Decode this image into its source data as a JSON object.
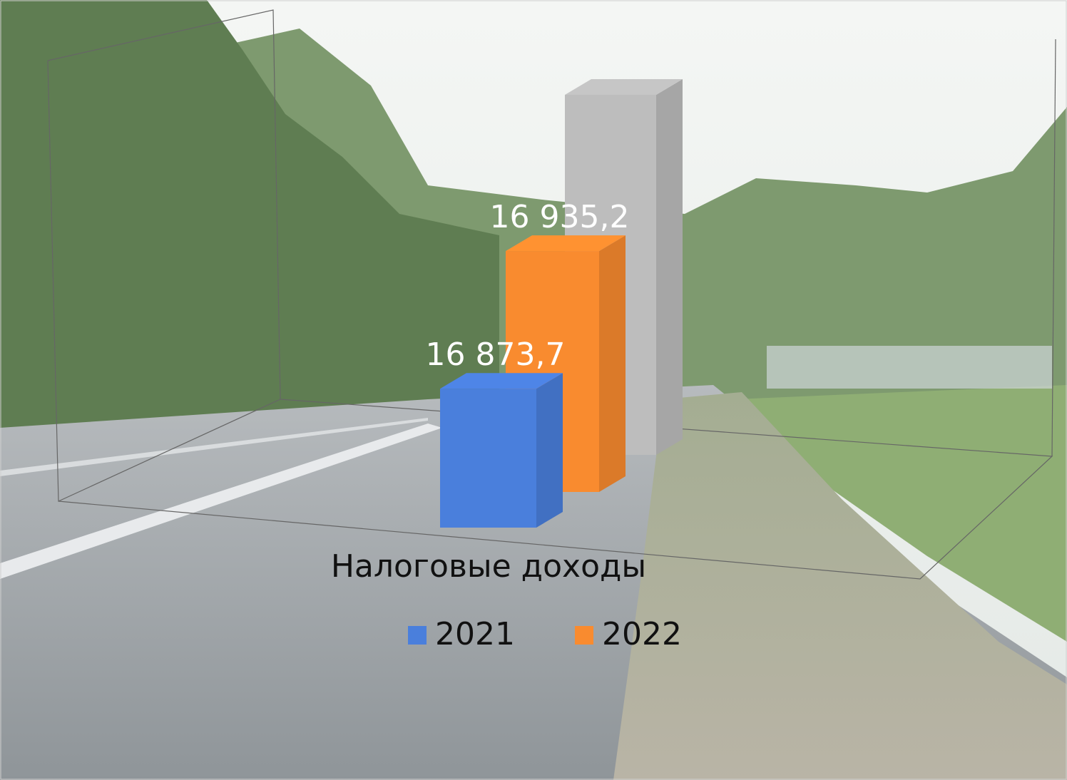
{
  "chart_data": {
    "type": "bar3d",
    "categories": [
      "Налоговые доходы"
    ],
    "series": [
      {
        "name": "2021",
        "color": "#4a7fdc",
        "values": [
          16873.7
        ],
        "value_labels": [
          "16 873,7"
        ]
      },
      {
        "name": "2022",
        "color": "#f98b2f",
        "values": [
          16935.2
        ],
        "value_labels": [
          "16 935,2"
        ]
      },
      {
        "name": null,
        "color": "#bdbdbd",
        "values": [
          17007
        ]
      }
    ],
    "ylim": [
      16790,
      17010
    ]
  }
}
